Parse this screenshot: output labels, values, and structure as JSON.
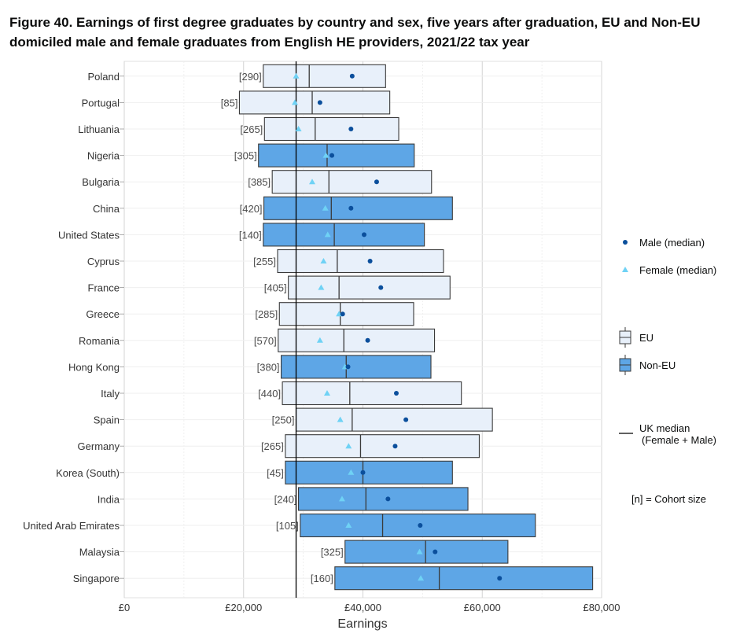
{
  "title": "Figure 40. Earnings of first degree graduates by country and sex, five years after graduation, EU and Non-EU domiciled male and female graduates from English HE providers, 2021/22 tax year",
  "colors": {
    "eu_fill": "#e8f0fa",
    "noneu_fill": "#5ea6e6",
    "box_stroke": "#3a3a3a",
    "male": "#0b4f9c",
    "female": "#6fd2f5",
    "uk_median": "#000000"
  },
  "legend": {
    "male": "Male (median)",
    "female": "Female (median)",
    "eu": "EU",
    "noneu": "Non-EU",
    "uk_median_line1": "UK median",
    "uk_median_line2": "(Female + Male)",
    "cohort": "[n] = Cohort size"
  },
  "chart_data": {
    "type": "box",
    "xlabel": "Earnings",
    "xlim": [
      0,
      80000
    ],
    "x_ticks": [
      0,
      20000,
      40000,
      60000,
      80000
    ],
    "x_tick_labels": [
      "£0",
      "£20,000",
      "£40,000",
      "£60,000",
      "£80,000"
    ],
    "uk_median": 28800,
    "grid": true,
    "legend_position": "right",
    "rows": [
      {
        "country": "Poland",
        "group": "EU",
        "n": "[290]",
        "q1": 23300,
        "median": 31000,
        "q3": 43800,
        "male": 38200,
        "female": 28800
      },
      {
        "country": "Portugal",
        "group": "EU",
        "n": "[85]",
        "q1": 19300,
        "median": 31500,
        "q3": 44500,
        "male": 32800,
        "female": 28600
      },
      {
        "country": "Lithuania",
        "group": "EU",
        "n": "[265]",
        "q1": 23500,
        "median": 32000,
        "q3": 46000,
        "male": 38000,
        "female": 29200
      },
      {
        "country": "Nigeria",
        "group": "Non-EU",
        "n": "[305]",
        "q1": 22500,
        "median": 34000,
        "q3": 48600,
        "male": 34800,
        "female": 33800
      },
      {
        "country": "Bulgaria",
        "group": "EU",
        "n": "[385]",
        "q1": 24800,
        "median": 34300,
        "q3": 51500,
        "male": 42300,
        "female": 31500
      },
      {
        "country": "China",
        "group": "Non-EU",
        "n": "[420]",
        "q1": 23400,
        "median": 34700,
        "q3": 55000,
        "male": 38000,
        "female": 33700
      },
      {
        "country": "United States",
        "group": "Non-EU",
        "n": "[140]",
        "q1": 23300,
        "median": 35200,
        "q3": 50300,
        "male": 40200,
        "female": 34100
      },
      {
        "country": "Cyprus",
        "group": "EU",
        "n": "[255]",
        "q1": 25700,
        "median": 35700,
        "q3": 53500,
        "male": 41200,
        "female": 33400
      },
      {
        "country": "France",
        "group": "EU",
        "n": "[405]",
        "q1": 27500,
        "median": 36000,
        "q3": 54600,
        "male": 43000,
        "female": 33000
      },
      {
        "country": "Greece",
        "group": "EU",
        "n": "[285]",
        "q1": 26000,
        "median": 36200,
        "q3": 48500,
        "male": 36600,
        "female": 36000
      },
      {
        "country": "Romania",
        "group": "EU",
        "n": "[570]",
        "q1": 25800,
        "median": 36800,
        "q3": 52000,
        "male": 40800,
        "female": 32800
      },
      {
        "country": "Hong Kong",
        "group": "Non-EU",
        "n": "[380]",
        "q1": 26300,
        "median": 37200,
        "q3": 51400,
        "male": 37500,
        "female": 37000
      },
      {
        "country": "Italy",
        "group": "EU",
        "n": "[440]",
        "q1": 26500,
        "median": 37800,
        "q3": 56500,
        "male": 45600,
        "female": 34000
      },
      {
        "country": "Spain",
        "group": "EU",
        "n": "[250]",
        "q1": 28800,
        "median": 38200,
        "q3": 61700,
        "male": 47200,
        "female": 36200
      },
      {
        "country": "Germany",
        "group": "EU",
        "n": "[265]",
        "q1": 27000,
        "median": 39600,
        "q3": 59500,
        "male": 45400,
        "female": 37600
      },
      {
        "country": "Korea (South)",
        "group": "Non-EU",
        "n": "[45]",
        "q1": 27000,
        "median": 40000,
        "q3": 55000,
        "male": 40000,
        "female": 38000
      },
      {
        "country": "India",
        "group": "Non-EU",
        "n": "[240]",
        "q1": 29200,
        "median": 40500,
        "q3": 57600,
        "male": 44200,
        "female": 36500
      },
      {
        "country": "United Arab Emirates",
        "group": "Non-EU",
        "n": "[105]",
        "q1": 29500,
        "median": 43300,
        "q3": 68900,
        "male": 49600,
        "female": 37600
      },
      {
        "country": "Malaysia",
        "group": "Non-EU",
        "n": "[325]",
        "q1": 37000,
        "median": 50500,
        "q3": 64300,
        "male": 52100,
        "female": 49500
      },
      {
        "country": "Singapore",
        "group": "Non-EU",
        "n": "[160]",
        "q1": 35300,
        "median": 52800,
        "q3": 78500,
        "male": 62900,
        "female": 49700
      }
    ]
  }
}
